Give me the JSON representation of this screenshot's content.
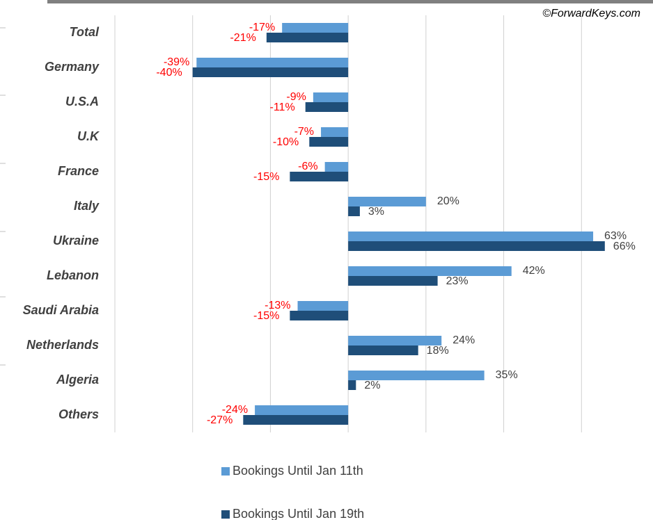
{
  "chart_data": {
    "type": "barh",
    "annotation": "©ForwardKeys.com",
    "categories": [
      "Total",
      "Germany",
      "U.S.A",
      "U.K",
      "France",
      "Italy",
      "Ukraine",
      "Lebanon",
      "Saudi Arabia",
      "Netherlands",
      "Algeria",
      "Others"
    ],
    "series": [
      {
        "name": "Bookings Until Jan 11th",
        "color": "#5b9bd5",
        "values": [
          -17,
          -39,
          -9,
          -7,
          -6,
          20,
          63,
          42,
          -13,
          24,
          35,
          -24
        ],
        "value_labels": [
          "-17%",
          "-39%",
          "-9%",
          "-7%",
          "-6%",
          "20%",
          "63%",
          "42%",
          "-13%",
          "24%",
          "35%",
          "-24%"
        ]
      },
      {
        "name": "Bookings Until Jan 19th",
        "color": "#1f4e79",
        "values": [
          -21,
          -40,
          -11,
          -10,
          -15,
          3,
          66,
          23,
          -15,
          18,
          2,
          -27
        ],
        "value_labels": [
          "-21%",
          "-40%",
          "-11%",
          "-10%",
          "-15%",
          "3%",
          "66%",
          "23%",
          "-15%",
          "18%",
          "2%",
          "-27%"
        ]
      }
    ],
    "xlim": [
      -60,
      80
    ],
    "xticks": [
      -60,
      -40,
      -20,
      0,
      20,
      40,
      60
    ],
    "grid": true,
    "negative_label_color": "#ff0000",
    "positive_label_color": "#404040"
  }
}
